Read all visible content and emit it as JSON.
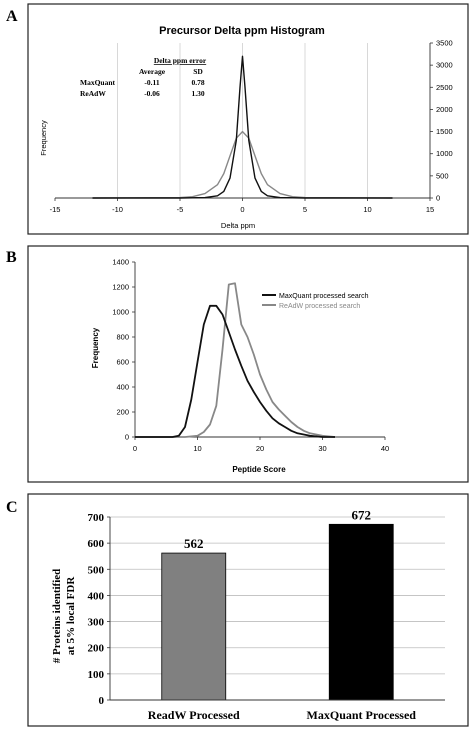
{
  "panels": {
    "a": {
      "letter": "A",
      "chart_data": {
        "type": "line",
        "title": "Precursor Delta ppm Histogram",
        "xlabel": "Delta ppm",
        "ylabel": "Frequency",
        "xlim": [
          -15,
          15
        ],
        "ylim": [
          0,
          3500
        ],
        "y_axis_side": "right",
        "x_ticks": [
          "-15",
          "-10",
          "-5",
          "0",
          "5",
          "10",
          "15"
        ],
        "y_ticks": [
          "0",
          "500",
          "1000",
          "1500",
          "2000",
          "2500",
          "3000",
          "3500"
        ],
        "grid": "vertical",
        "series": [
          {
            "name": "MaxQuant",
            "color": "#111111",
            "x": [
              -12,
              -5,
              -3,
              -2,
              -1.5,
              -1,
              -0.5,
              -0.2,
              0,
              0.2,
              0.5,
              1,
              1.5,
              2,
              3,
              5,
              12
            ],
            "y": [
              0,
              0,
              10,
              50,
              150,
              450,
              1300,
              2500,
              3200,
              2500,
              1300,
              450,
              150,
              50,
              10,
              0,
              0
            ]
          },
          {
            "name": "ReAdW",
            "color": "#888888",
            "x": [
              -12,
              -5,
              -4,
              -3,
              -2,
              -1.5,
              -1,
              -0.5,
              0,
              0.5,
              1,
              1.5,
              2,
              3,
              4,
              5,
              12
            ],
            "y": [
              0,
              10,
              30,
              100,
              300,
              550,
              950,
              1350,
              1500,
              1350,
              950,
              550,
              300,
              100,
              30,
              10,
              0
            ]
          }
        ],
        "inset_table": {
          "title": "Delta ppm error",
          "headers": [
            "Average",
            "SD"
          ],
          "rows": [
            {
              "label": "MaxQuant",
              "average": "-0.11",
              "sd": "0.78"
            },
            {
              "label": "ReAdW",
              "average": "-0.06",
              "sd": "1.30"
            }
          ]
        }
      }
    },
    "b": {
      "letter": "B",
      "chart_data": {
        "type": "line",
        "xlabel": "Peptide Score",
        "ylabel": "Frequency",
        "xlim": [
          0,
          40
        ],
        "ylim": [
          0,
          1400
        ],
        "x_ticks": [
          "0",
          "10",
          "20",
          "30",
          "40"
        ],
        "y_ticks": [
          "0",
          "200",
          "400",
          "600",
          "800",
          "1000",
          "1200",
          "1400"
        ],
        "legend_position": "top-right",
        "series": [
          {
            "name": "MaxQuant processed search",
            "color": "#111111",
            "x": [
              0,
              6,
              7,
              8,
              9,
              10,
              11,
              12,
              13,
              14,
              15,
              16,
              17,
              18,
              19,
              20,
              21,
              22,
              23,
              24,
              25,
              26,
              28,
              30,
              32
            ],
            "y": [
              0,
              0,
              10,
              80,
              300,
              600,
              900,
              1050,
              1050,
              980,
              840,
              700,
              570,
              450,
              360,
              280,
              210,
              150,
              110,
              80,
              50,
              30,
              10,
              0,
              0
            ]
          },
          {
            "name": "ReAdW processed search",
            "color": "#888888",
            "x": [
              0,
              8,
              10,
              11,
              12,
              13,
              14,
              15,
              16,
              17,
              18,
              19,
              20,
              21,
              22,
              23,
              24,
              25,
              26,
              27,
              28,
              30,
              32
            ],
            "y": [
              0,
              0,
              10,
              40,
              100,
              250,
              700,
              1220,
              1230,
              900,
              800,
              660,
              500,
              380,
              280,
              220,
              170,
              120,
              80,
              50,
              30,
              10,
              0
            ]
          }
        ]
      }
    },
    "c": {
      "letter": "C",
      "chart_data": {
        "type": "bar",
        "ylabel": "# Proteins identified at 5% local FDR",
        "ylabel_lines": [
          "# Proteins identified",
          "at 5% local FDR"
        ],
        "categories": [
          "ReadW Processed",
          "MaxQuant Processed"
        ],
        "values": [
          562,
          672
        ],
        "value_labels": [
          "562",
          "672"
        ],
        "colors": [
          "#808080",
          "#000000"
        ],
        "ylim": [
          0,
          700
        ],
        "y_ticks": [
          "0",
          "100",
          "200",
          "300",
          "400",
          "500",
          "600",
          "700"
        ],
        "grid": "horizontal"
      }
    }
  }
}
